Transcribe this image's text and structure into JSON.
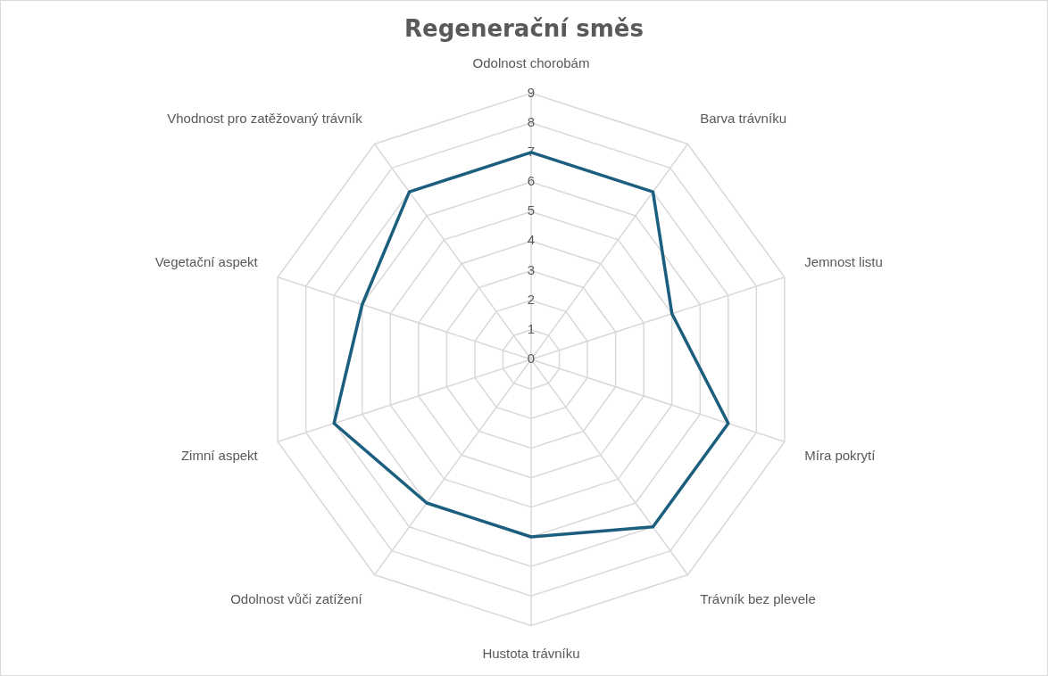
{
  "chart_data": {
    "type": "radar",
    "title": "Regenerační směs",
    "categories": [
      "Odolnost chorobám",
      "Barva trávníku",
      "Jemnost listu",
      "Míra pokrytí",
      "Trávník bez plevele",
      "Hustota trávníku",
      "Odolnost vůči zatížení",
      "Zimní aspekt",
      "Vegetační aspekt",
      "Vhodnost pro zatěžovaný trávník"
    ],
    "series": [
      {
        "color": "#1b5e7e",
        "values": [
          7,
          7,
          5,
          7,
          7,
          6,
          6,
          7,
          6,
          7
        ]
      }
    ],
    "ylim": [
      0,
      9
    ],
    "yticks": [
      0,
      1,
      2,
      3,
      4,
      5,
      6,
      7,
      8,
      9
    ],
    "grid": true,
    "legend": false,
    "marker": "none",
    "line_style": "solid"
  }
}
